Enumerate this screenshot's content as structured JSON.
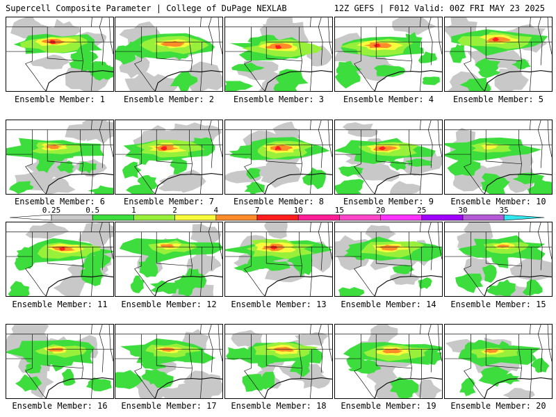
{
  "title_left": "Supercell Composite Parameter | College of DuPage NEXLAB",
  "title_right": "12Z GEFS | F012 Valid: 00Z FRI MAY 23 2025",
  "member_label_prefix": "Ensemble Member: ",
  "members": [
    {
      "id": "1",
      "center": [
        0.46,
        0.33
      ],
      "strength": 0.85
    },
    {
      "id": "2",
      "center": [
        0.55,
        0.36
      ],
      "strength": 0.8
    },
    {
      "id": "3",
      "center": [
        0.52,
        0.4
      ],
      "strength": 0.9
    },
    {
      "id": "4",
      "center": [
        0.42,
        0.38
      ],
      "strength": 0.9
    },
    {
      "id": "5",
      "center": [
        0.5,
        0.3
      ],
      "strength": 0.9
    },
    {
      "id": "6",
      "center": [
        0.45,
        0.36
      ],
      "strength": 0.6
    },
    {
      "id": "7",
      "center": [
        0.48,
        0.38
      ],
      "strength": 0.85
    },
    {
      "id": "8",
      "center": [
        0.52,
        0.38
      ],
      "strength": 0.85
    },
    {
      "id": "9",
      "center": [
        0.47,
        0.38
      ],
      "strength": 0.85
    },
    {
      "id": "10",
      "center": [
        0.42,
        0.36
      ],
      "strength": 0.4
    },
    {
      "id": "11",
      "center": [
        0.55,
        0.36
      ],
      "strength": 0.85
    },
    {
      "id": "12",
      "center": [
        0.5,
        0.32
      ],
      "strength": 0.55
    },
    {
      "id": "13",
      "center": [
        0.48,
        0.34
      ],
      "strength": 0.95
    },
    {
      "id": "14",
      "center": [
        0.52,
        0.34
      ],
      "strength": 0.8
    },
    {
      "id": "15",
      "center": [
        0.56,
        0.32
      ],
      "strength": 0.5
    },
    {
      "id": "16",
      "center": [
        0.48,
        0.34
      ],
      "strength": 0.6
    },
    {
      "id": "17",
      "center": [
        0.5,
        0.34
      ],
      "strength": 0.6
    },
    {
      "id": "18",
      "center": [
        0.56,
        0.34
      ],
      "strength": 0.75
    },
    {
      "id": "19",
      "center": [
        0.56,
        0.36
      ],
      "strength": 0.8
    },
    {
      "id": "20",
      "center": [
        0.45,
        0.36
      ],
      "strength": 0.5
    }
  ],
  "colorbar": {
    "tick_labels": [
      "0.25",
      "0.5",
      "1",
      "2",
      "4",
      "7",
      "10",
      "15",
      "20",
      "25",
      "30",
      "35"
    ],
    "colors": [
      "#c8c8c8",
      "#3ddd3d",
      "#98f03a",
      "#fafa3c",
      "#ff8c28",
      "#ff1e1e",
      "#ff1e96",
      "#ff46c8",
      "#ff32ff",
      "#a000ff",
      "#b45ad7",
      "#32e6f0"
    ]
  },
  "field_colors": {
    "light": "#c8c8c8",
    "green": "#3ddd3d",
    "lightgreen": "#98f03a",
    "yellow": "#fafa3c",
    "orange": "#ff8c28",
    "red": "#ff1e1e"
  }
}
